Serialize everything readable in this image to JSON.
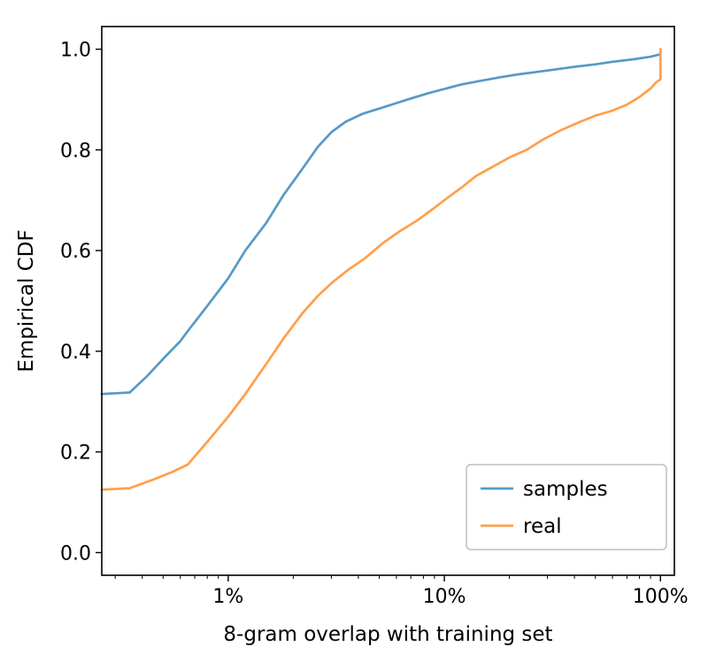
{
  "chart_data": {
    "type": "line",
    "title": "",
    "xlabel": "8-gram overlap with training set",
    "ylabel": "Empirical CDF",
    "x_scale": "log",
    "xlim": [
      0.26,
      116
    ],
    "ylim": [
      -0.045,
      1.045
    ],
    "grid": false,
    "x_ticks": [
      {
        "value": 1,
        "label": "1%"
      },
      {
        "value": 10,
        "label": "10%"
      },
      {
        "value": 100,
        "label": "100%"
      }
    ],
    "y_ticks": [
      {
        "value": 0.0,
        "label": "0.0"
      },
      {
        "value": 0.2,
        "label": "0.2"
      },
      {
        "value": 0.4,
        "label": "0.4"
      },
      {
        "value": 0.6,
        "label": "0.6"
      },
      {
        "value": 0.8,
        "label": "0.8"
      },
      {
        "value": 1.0,
        "label": "1.0"
      }
    ],
    "legend": {
      "position": "lower right",
      "entries": [
        "samples",
        "real"
      ]
    },
    "series": [
      {
        "name": "samples",
        "color": "#5799c7",
        "x": [
          0.26,
          0.35,
          0.42,
          0.5,
          0.6,
          0.65,
          0.8,
          1.0,
          1.2,
          1.5,
          1.8,
          2.2,
          2.6,
          3.0,
          3.5,
          4.2,
          5.0,
          6.0,
          7.0,
          8.5,
          10,
          12,
          15,
          18,
          22,
          27,
          33,
          40,
          50,
          60,
          75,
          90,
          100,
          100
        ],
        "y": [
          0.315,
          0.318,
          0.35,
          0.385,
          0.42,
          0.44,
          0.49,
          0.545,
          0.6,
          0.655,
          0.71,
          0.762,
          0.806,
          0.835,
          0.856,
          0.872,
          0.882,
          0.893,
          0.902,
          0.913,
          0.921,
          0.93,
          0.938,
          0.944,
          0.95,
          0.955,
          0.96,
          0.965,
          0.97,
          0.975,
          0.98,
          0.985,
          0.99,
          1.0
        ]
      },
      {
        "name": "real",
        "color": "#ff9f4a",
        "x": [
          0.26,
          0.35,
          0.45,
          0.55,
          0.65,
          0.8,
          1.0,
          1.2,
          1.5,
          1.8,
          2.2,
          2.6,
          3.0,
          3.6,
          4.3,
          5.2,
          6.2,
          7.5,
          9.0,
          10,
          12,
          14,
          17,
          20,
          24,
          29,
          35,
          42,
          50,
          60,
          70,
          80,
          90,
          96,
          100,
          100
        ],
        "y": [
          0.125,
          0.128,
          0.145,
          0.16,
          0.175,
          0.22,
          0.27,
          0.315,
          0.375,
          0.425,
          0.475,
          0.51,
          0.535,
          0.562,
          0.585,
          0.615,
          0.638,
          0.66,
          0.685,
          0.7,
          0.725,
          0.748,
          0.768,
          0.785,
          0.8,
          0.822,
          0.84,
          0.855,
          0.868,
          0.878,
          0.89,
          0.905,
          0.922,
          0.935,
          0.94,
          1.0
        ]
      }
    ]
  }
}
